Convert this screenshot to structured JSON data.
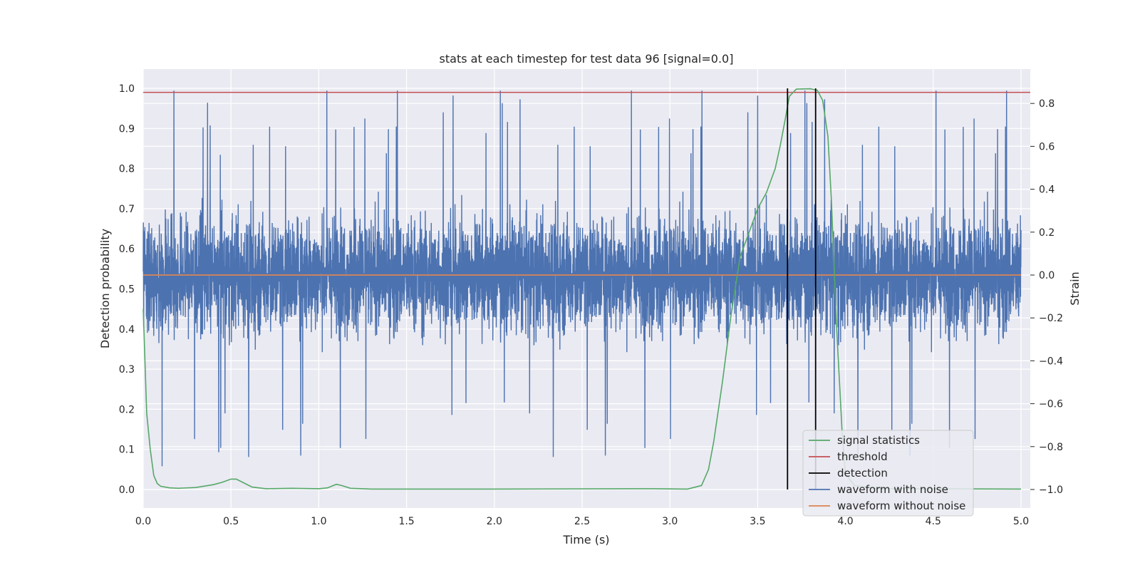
{
  "chart_data": {
    "type": "line",
    "title": "stats at each timestep for test data 96 [signal=0.0]",
    "xlabel": "Time (s)",
    "ylabel_left": "Detection probability",
    "ylabel_right": "Strain",
    "xlim": [
      0.0,
      5.0
    ],
    "ylim_left": [
      0.0,
      1.0
    ],
    "ylim_right": [
      -1.0,
      0.85
    ],
    "x_ticks": [
      "0.0",
      "0.5",
      "1.0",
      "1.5",
      "2.0",
      "2.5",
      "3.0",
      "3.5",
      "4.0",
      "4.5",
      "5.0"
    ],
    "y_ticks_left": [
      "0.0",
      "0.1",
      "0.2",
      "0.3",
      "0.4",
      "0.5",
      "0.6",
      "0.7",
      "0.8",
      "0.9",
      "1.0"
    ],
    "y_ticks_right": [
      "−1.0",
      "−0.8",
      "−0.6",
      "−0.4",
      "−0.2",
      "0.0",
      "0.2",
      "0.4",
      "0.6",
      "0.8"
    ],
    "grid": true,
    "legend_position": "lower-right",
    "legend": [
      {
        "label": "signal statistics",
        "color": "#55a868"
      },
      {
        "label": "threshold",
        "color": "#c44e52"
      },
      {
        "label": "detection",
        "color": "#000000"
      },
      {
        "label": "waveform with noise",
        "color": "#4c72b0"
      },
      {
        "label": "waveform without noise",
        "color": "#dd8452"
      }
    ],
    "series": [
      {
        "name": "signal statistics",
        "axis": "left",
        "color": "#55a868",
        "points": [
          [
            0.0,
            0.45
          ],
          [
            0.02,
            0.19
          ],
          [
            0.04,
            0.1
          ],
          [
            0.06,
            0.035
          ],
          [
            0.08,
            0.015
          ],
          [
            0.1,
            0.008
          ],
          [
            0.15,
            0.004
          ],
          [
            0.2,
            0.003
          ],
          [
            0.3,
            0.005
          ],
          [
            0.4,
            0.012
          ],
          [
            0.45,
            0.018
          ],
          [
            0.5,
            0.026
          ],
          [
            0.53,
            0.026
          ],
          [
            0.57,
            0.017
          ],
          [
            0.62,
            0.006
          ],
          [
            0.7,
            0.002
          ],
          [
            0.85,
            0.003
          ],
          [
            1.0,
            0.002
          ],
          [
            1.05,
            0.004
          ],
          [
            1.1,
            0.013
          ],
          [
            1.13,
            0.01
          ],
          [
            1.18,
            0.003
          ],
          [
            1.3,
            0.001
          ],
          [
            2.0,
            0.001
          ],
          [
            2.9,
            0.002
          ],
          [
            3.1,
            0.001
          ],
          [
            3.18,
            0.01
          ],
          [
            3.22,
            0.05
          ],
          [
            3.25,
            0.12
          ],
          [
            3.3,
            0.27
          ],
          [
            3.35,
            0.44
          ],
          [
            3.4,
            0.58
          ],
          [
            3.5,
            0.7
          ],
          [
            3.55,
            0.74
          ],
          [
            3.6,
            0.8
          ],
          [
            3.63,
            0.86
          ],
          [
            3.66,
            0.93
          ],
          [
            3.68,
            0.98
          ],
          [
            3.72,
            0.998
          ],
          [
            3.8,
            0.999
          ],
          [
            3.84,
            0.995
          ],
          [
            3.87,
            0.97
          ],
          [
            3.9,
            0.88
          ],
          [
            3.92,
            0.72
          ],
          [
            3.93,
            0.61
          ],
          [
            3.95,
            0.4
          ],
          [
            3.98,
            0.15
          ],
          [
            4.0,
            0.04
          ],
          [
            4.05,
            0.01
          ],
          [
            4.2,
            0.002
          ],
          [
            5.0,
            0.001
          ]
        ]
      },
      {
        "name": "threshold",
        "axis": "left",
        "color": "#c44e52",
        "value": 0.99
      },
      {
        "name": "detection",
        "axis": "left",
        "color": "#000000",
        "x": [
          3.67,
          3.83
        ],
        "y_range": [
          0.0,
          1.0
        ]
      },
      {
        "name": "waveform with noise",
        "axis": "right",
        "color": "#4c72b0",
        "sample_rate": 2048,
        "description_of_envelope": "random noise, amplitude mostly within ±0.5, peaks near 0.85 and troughs near −0.96",
        "range": [
          -0.96,
          0.86
        ]
      },
      {
        "name": "waveform without noise",
        "axis": "right",
        "color": "#dd8452",
        "value": 0.0
      }
    ]
  }
}
